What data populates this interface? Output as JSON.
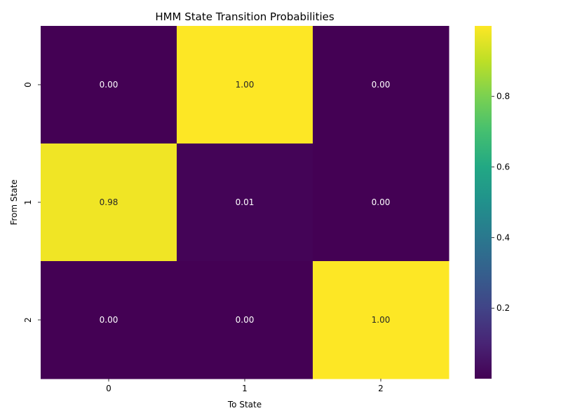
{
  "chart_data": {
    "type": "heatmap",
    "title": "HMM State Transition Probabilities",
    "xlabel": "To State",
    "ylabel": "From State",
    "x_categories": [
      "0",
      "1",
      "2"
    ],
    "y_categories": [
      "0",
      "1",
      "2"
    ],
    "values": [
      [
        0.0,
        1.0,
        0.0
      ],
      [
        0.98,
        0.01,
        0.0
      ],
      [
        0.0,
        0.0,
        1.0
      ]
    ],
    "cell_labels": [
      [
        "0.00",
        "1.00",
        "0.00"
      ],
      [
        "0.98",
        "0.01",
        "0.00"
      ],
      [
        "0.00",
        "0.00",
        "1.00"
      ]
    ],
    "colormap": "viridis",
    "colorbar": {
      "range": [
        0.0001,
        0.9998
      ],
      "ticks": [
        "0.2",
        "0.4",
        "0.6",
        "0.8"
      ],
      "tick_values": [
        0.2,
        0.4,
        0.6,
        0.8
      ]
    },
    "grid": false,
    "legend": "colorbar-right"
  }
}
